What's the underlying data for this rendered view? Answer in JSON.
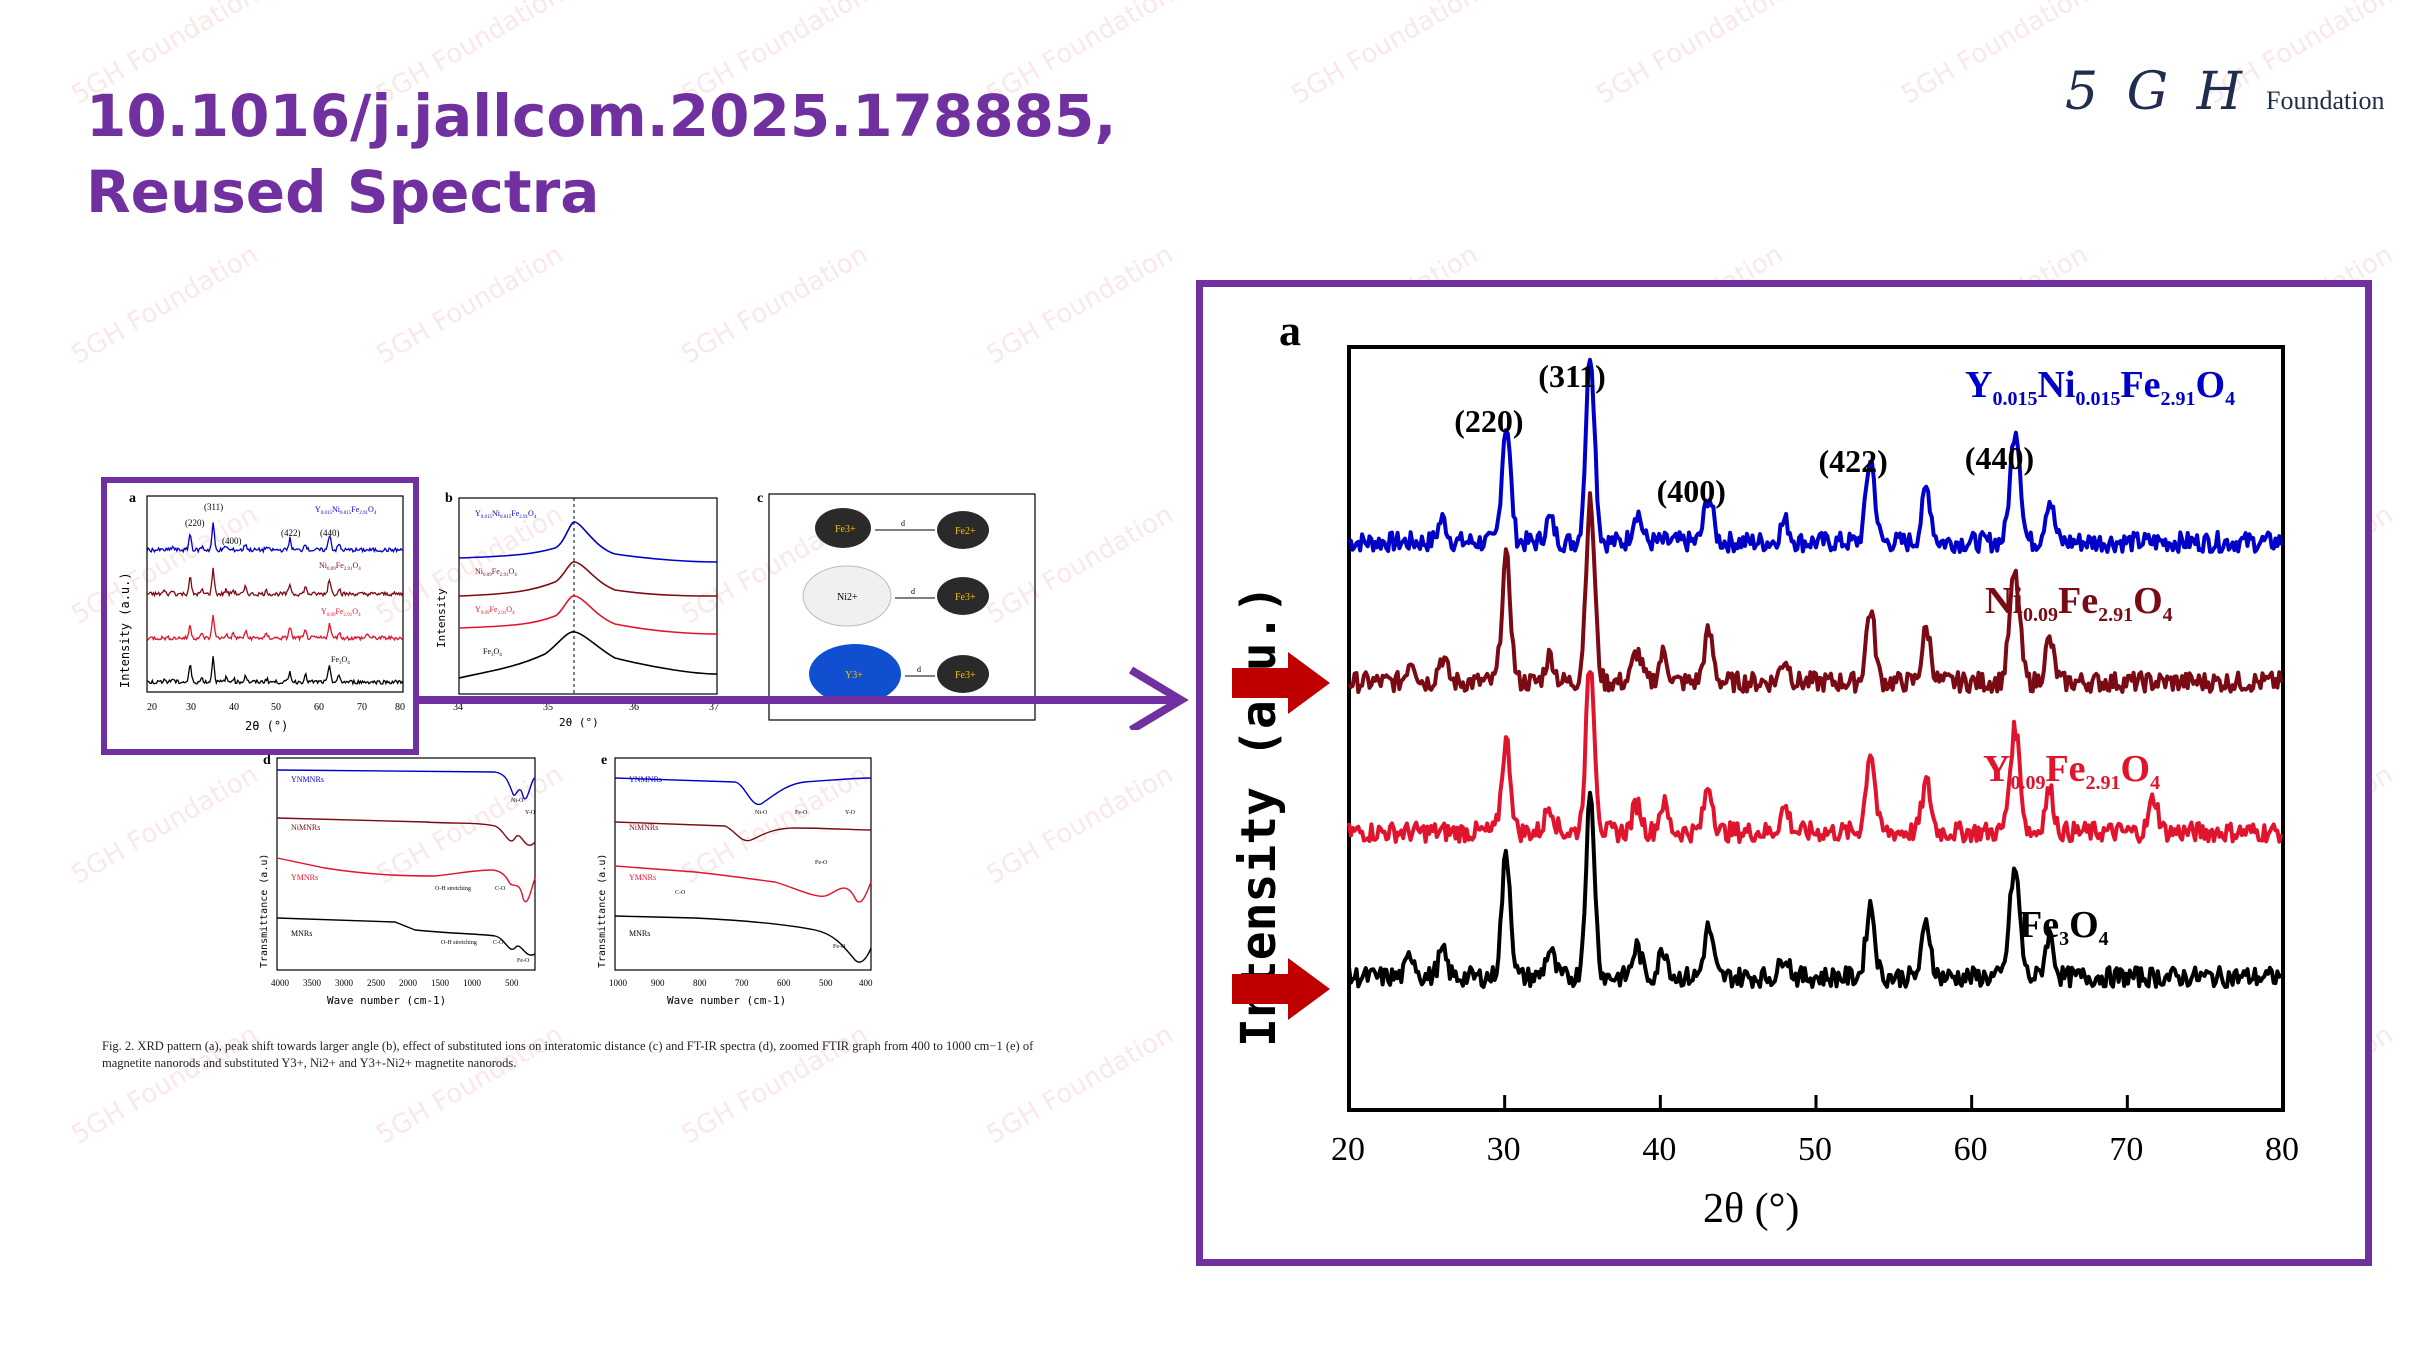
{
  "slide": {
    "title_line1": "10.1016/j.jallcom.2025.178885,",
    "title_line2": "Reused Spectra",
    "logo_mark": "5 G H",
    "logo_text": "Foundation",
    "watermark": "5GH Foundation"
  },
  "colors": {
    "title": "#7030a0",
    "frame": "#7030a0",
    "arrow_red": "#c00000",
    "blue": "#0000c8",
    "darkred": "#7a0a14",
    "red": "#e0142c",
    "black": "#000000"
  },
  "figure": {
    "panel_a_label": "a",
    "panel_b_label": "b",
    "panel_c_label": "c",
    "panel_d_label": "d",
    "panel_e_label": "e",
    "a_peaks": [
      "(220)",
      "(311)",
      "(400)",
      "(422)",
      "(440)"
    ],
    "a_ylabel": "Intensity (a.u.)",
    "a_xlabel": "2θ (°)",
    "a_xticks": [
      "20",
      "30",
      "40",
      "50",
      "60",
      "70",
      "80"
    ],
    "b_ylabel": "Intensity",
    "b_xlabel": "2θ (°)",
    "b_xticks": [
      "34",
      "35",
      "36",
      "37"
    ],
    "c_ions": [
      "Fe3+",
      "Fe2+",
      "Ni2+",
      "Fe3+",
      "Y3+",
      "Fe3+"
    ],
    "c_distance": "d",
    "d_series": [
      "YNMNRs",
      "NiMNRs",
      "YMNRs",
      "MNRs"
    ],
    "d_ylabel": "Transmittance (a.u)",
    "d_xlabel": "Wave number  (cm-1)",
    "d_xticks": [
      "4000",
      "3500",
      "3000",
      "2500",
      "2000",
      "1500",
      "1000",
      "500"
    ],
    "d_annots": [
      "O-H stretching",
      "C-O",
      "O-H stretching",
      "C-O",
      "Fe-O",
      "Ni-O",
      "Y-O"
    ],
    "e_series": [
      "YNMNRs",
      "NiMNRs",
      "YMNRs",
      "MNRs"
    ],
    "e_ylabel": "Transmittance (a.u)",
    "e_xlabel": "Wave number  (cm-1)",
    "e_xticks": [
      "1000",
      "900",
      "800",
      "700",
      "600",
      "500",
      "400"
    ],
    "e_annots": [
      "Ni-O",
      "Fe-O",
      "Y-O",
      "C-O",
      "Fe-O",
      "Fe-O"
    ],
    "caption": "Fig. 2.  XRD pattern (a), peak shift towards larger angle (b), effect of substituted ions on interatomic distance (c) and FT-IR spectra (d), zoomed FTIR graph from 400 to 1000 cm−1 (e) of magnetite nanorods and substituted Y3+, Ni2+ and Y3+-Ni2+ magnetite nanorods."
  },
  "zoom": {
    "panel_label": "a",
    "peaks": [
      "(220)",
      "(311)",
      "(400)",
      "(422)",
      "(440)"
    ],
    "ylabel": "Intensity (a.u.)",
    "xlabel": "2θ (°)"
  },
  "chart_data": {
    "type": "line",
    "title": "",
    "xlabel": "2θ (°)",
    "ylabel": "Intensity (a.u.)",
    "xlim": [
      20,
      80
    ],
    "xticks": [
      20,
      30,
      40,
      50,
      60,
      70,
      80
    ],
    "grid": false,
    "peak_labels": [
      {
        "label": "(220)",
        "x": 30.1
      },
      {
        "label": "(311)",
        "x": 35.5
      },
      {
        "label": "(400)",
        "x": 43.1
      },
      {
        "label": "(422)",
        "x": 53.5
      },
      {
        "label": "(440)",
        "x": 62.9
      }
    ],
    "series": [
      {
        "name": "Y0.015Ni0.015Fe2.91O4",
        "name_parts": [
          [
            "Y",
            ""
          ],
          [
            "0.015",
            "sub"
          ],
          [
            "Ni",
            ""
          ],
          [
            "0.015",
            "sub"
          ],
          [
            "Fe",
            ""
          ],
          [
            "2.91",
            "sub"
          ],
          [
            "O",
            ""
          ],
          [
            "4",
            "sub"
          ]
        ],
        "color": "#0000c8",
        "offset": 3,
        "style": "a"
      },
      {
        "name": "Ni0.09Fe2.91O4",
        "name_parts": [
          [
            "Ni",
            ""
          ],
          [
            "0.09",
            "sub"
          ],
          [
            "Fe",
            ""
          ],
          [
            "2.91",
            "sub"
          ],
          [
            "O",
            ""
          ],
          [
            "4",
            "sub"
          ]
        ],
        "color": "#7a0a14",
        "offset": 2,
        "style": "b"
      },
      {
        "name": "Y0.09Fe2.91O4",
        "name_parts": [
          [
            "Y",
            ""
          ],
          [
            "0.09",
            "sub"
          ],
          [
            "Fe",
            ""
          ],
          [
            "2.91",
            "sub"
          ],
          [
            "O",
            ""
          ],
          [
            "4",
            "sub"
          ]
        ],
        "color": "#e0142c",
        "offset": 1,
        "style": "c"
      },
      {
        "name": "Fe3O4",
        "name_parts": [
          [
            "Fe",
            ""
          ],
          [
            "3",
            "sub"
          ],
          [
            "O",
            ""
          ],
          [
            "4",
            "sub"
          ]
        ],
        "color": "#000000",
        "offset": 0,
        "style": "b"
      }
    ],
    "peaks_by_style": {
      "a": [
        [
          30.1,
          6.2
        ],
        [
          32.9,
          1.2
        ],
        [
          35.5,
          10
        ],
        [
          43.1,
          2.4
        ],
        [
          57.1,
          2.8
        ],
        [
          62.6,
          2.2
        ],
        [
          65,
          2.2
        ],
        [
          53.5,
          4.4
        ],
        [
          62.9,
          4.6
        ],
        [
          38.5,
          1.6
        ],
        [
          48,
          1.1
        ],
        [
          26,
          1.2
        ]
      ],
      "b": [
        [
          30.1,
          6.5
        ],
        [
          32.9,
          1.4
        ],
        [
          35.5,
          9.5
        ],
        [
          43.1,
          2.6
        ],
        [
          57.1,
          2.8
        ],
        [
          62.6,
          3
        ],
        [
          65,
          2.2
        ],
        [
          53.5,
          3.8
        ],
        [
          62.9,
          3.5
        ],
        [
          38.5,
          1.6
        ],
        [
          48,
          1.2
        ],
        [
          26,
          1.3
        ],
        [
          40.2,
          1.5
        ],
        [
          24,
          1.2
        ]
      ],
      "c": [
        [
          30.1,
          4.8
        ],
        [
          32.9,
          1.4
        ],
        [
          35.5,
          8.8
        ],
        [
          43.1,
          2.4
        ],
        [
          57.1,
          2.6
        ],
        [
          62.6,
          2.4
        ],
        [
          65,
          2.2
        ],
        [
          53.5,
          4.3
        ],
        [
          62.9,
          3.8
        ],
        [
          38.5,
          1.5
        ],
        [
          48,
          1.3
        ],
        [
          71.7,
          1.8
        ],
        [
          40.2,
          1.5
        ]
      ]
    }
  }
}
